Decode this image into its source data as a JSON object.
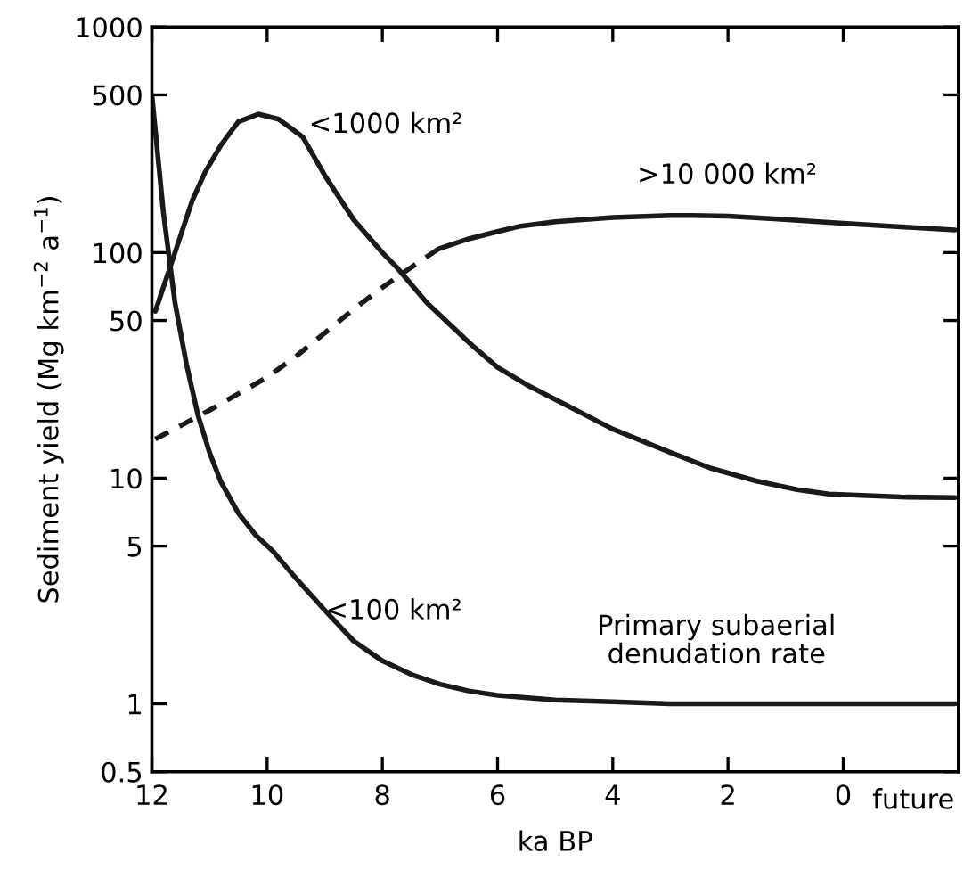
{
  "chart_data": {
    "type": "line",
    "xlabel": "ka BP",
    "ylabel": "Sediment yield (Mg km$^{−2}$ a$^{−1}$)",
    "log": "y",
    "xlim": [
      12,
      -2
    ],
    "ylim": [
      0.5,
      1000
    ],
    "xticks": [
      12,
      10,
      8,
      6,
      4,
      2,
      0
    ],
    "yticks": [
      0.5,
      1,
      5,
      10,
      50,
      100,
      500,
      1000
    ],
    "grid": false,
    "legend": false,
    "marker": "none",
    "series": [
      {
        "color": "#1a1a1a",
        "line_style": "solid",
        "x": [
          12,
          11.8,
          11.6,
          11.4,
          11.2,
          11.0,
          10.8,
          10.5,
          10.2,
          9.9,
          9.5,
          9,
          8.5,
          8,
          7.5,
          7,
          6.5,
          6,
          5,
          4,
          3,
          2,
          1,
          0,
          -1,
          -1.94
        ],
        "values": [
          500,
          150,
          60,
          32,
          19,
          13,
          9.6,
          7,
          5.6,
          4.75,
          3.6,
          2.6,
          1.9,
          1.55,
          1.35,
          1.22,
          1.14,
          1.09,
          1.04,
          1.02,
          1.0,
          1.0,
          1.0,
          1.0,
          1.0,
          1.0
        ]
      },
      {
        "color": "#1a1a1a",
        "line_style": "solid",
        "x": [
          11.94,
          11.6,
          11.3,
          11.08,
          10.8,
          10.5,
          10.15,
          9.8,
          9.38,
          9.0,
          8.5,
          8.0,
          7.75,
          7.23,
          6.5,
          6.0,
          5.5,
          4.86,
          4.0,
          3.0,
          2.31,
          1.5,
          0.8,
          0.25,
          -1,
          -1.94
        ],
        "values": [
          55,
          100,
          170,
          226,
          300,
          380,
          411,
          390,
          325,
          220,
          140,
          100,
          86,
          60,
          40,
          31,
          26,
          21.4,
          16.5,
          13,
          11.1,
          9.7,
          8.9,
          8.5,
          8.25,
          8.2
        ]
      },
      {
        "color": "#1a1a1a",
        "line_style": "dashed",
        "x": [
          11.94,
          11,
          10,
          9.48,
          9,
          8.5,
          8,
          7.5,
          7.02
        ],
        "values": [
          14.9,
          20,
          28,
          35,
          44,
          56,
          70,
          86,
          104
        ]
      },
      {
        "color": "#1a1a1a",
        "line_style": "solid",
        "x": [
          7.02,
          6.5,
          6,
          5.6,
          5,
          4,
          3,
          2.62,
          2,
          1.2,
          0.25,
          -1,
          -1.94
        ],
        "values": [
          104,
          115,
          124,
          131,
          137,
          143,
          146,
          146,
          145,
          141,
          136,
          130,
          126
        ]
      }
    ],
    "annotations": [
      "<1000 km²",
      ">10 000 km²",
      "<100 km²",
      "Primary subaerial\ndenudation rate",
      "future"
    ]
  }
}
